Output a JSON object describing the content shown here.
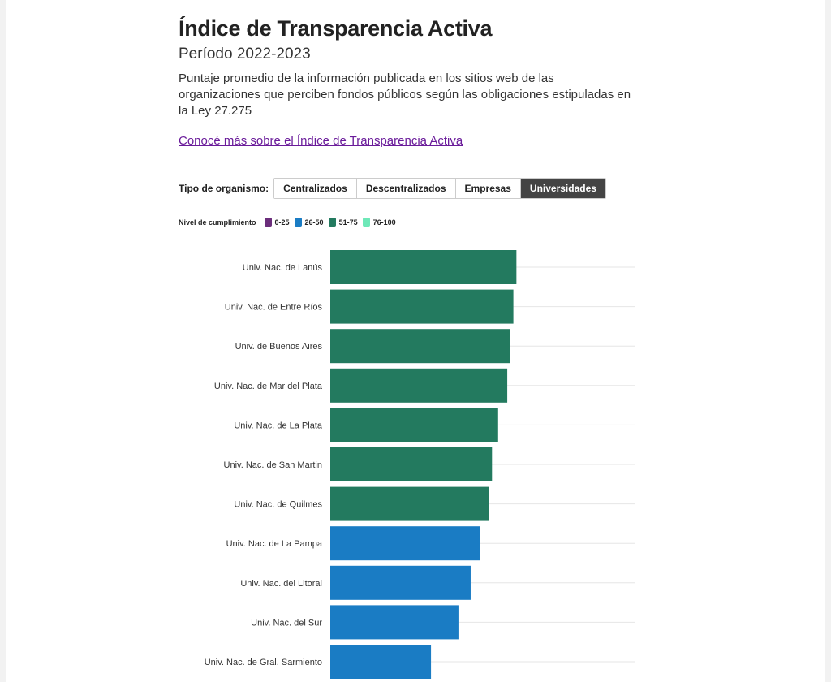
{
  "header": {
    "title": "Índice de Transparencia Activa",
    "subtitle": "Período 2022-2023",
    "description": "Puntaje promedio de la información publicada en los sitios web de las organizaciones que perciben fondos públicos según las obligaciones estipuladas en la Ley 27.275",
    "link": "Conocé más sobre el Índice de Transparencia Activa"
  },
  "filter": {
    "label": "Tipo de organismo:",
    "tabs": [
      "Centralizados",
      "Descentralizados",
      "Empresas",
      "Universidades"
    ],
    "active": "Universidades"
  },
  "legend": {
    "title": "Nivel de cumplimiento",
    "items": [
      {
        "label": "0-25",
        "color": "#6b2d7b"
      },
      {
        "label": "26-50",
        "color": "#1a7cc4"
      },
      {
        "label": "51-75",
        "color": "#237a5f"
      },
      {
        "label": "76-100",
        "color": "#6ee8b8"
      }
    ]
  },
  "chart_data": {
    "type": "bar",
    "orientation": "horizontal",
    "categories": [
      "Univ. Nac. de Lanús",
      "Univ. Nac. de Entre Ríos",
      "Univ. de Buenos Aires",
      "Univ. Nac. de Mar del Plata",
      "Univ. Nac. de La Plata",
      "Univ. Nac. de San Martin",
      "Univ. Nac. de Quilmes",
      "Univ. Nac. de La Pampa",
      "Univ. Nac. del Litoral",
      "Univ. Nac. del Sur",
      "Univ. Nac. de Gral. Sarmiento"
    ],
    "values": [
      61,
      60,
      59,
      58,
      55,
      53,
      52,
      49,
      46,
      42,
      33
    ],
    "xlim": [
      0,
      100
    ],
    "grid": true,
    "color_scale": [
      {
        "range": [
          0,
          25
        ],
        "color": "#6b2d7b"
      },
      {
        "range": [
          26,
          50
        ],
        "color": "#1a7cc4"
      },
      {
        "range": [
          51,
          75
        ],
        "color": "#237a5f"
      },
      {
        "range": [
          76,
          100
        ],
        "color": "#6ee8b8"
      }
    ]
  }
}
